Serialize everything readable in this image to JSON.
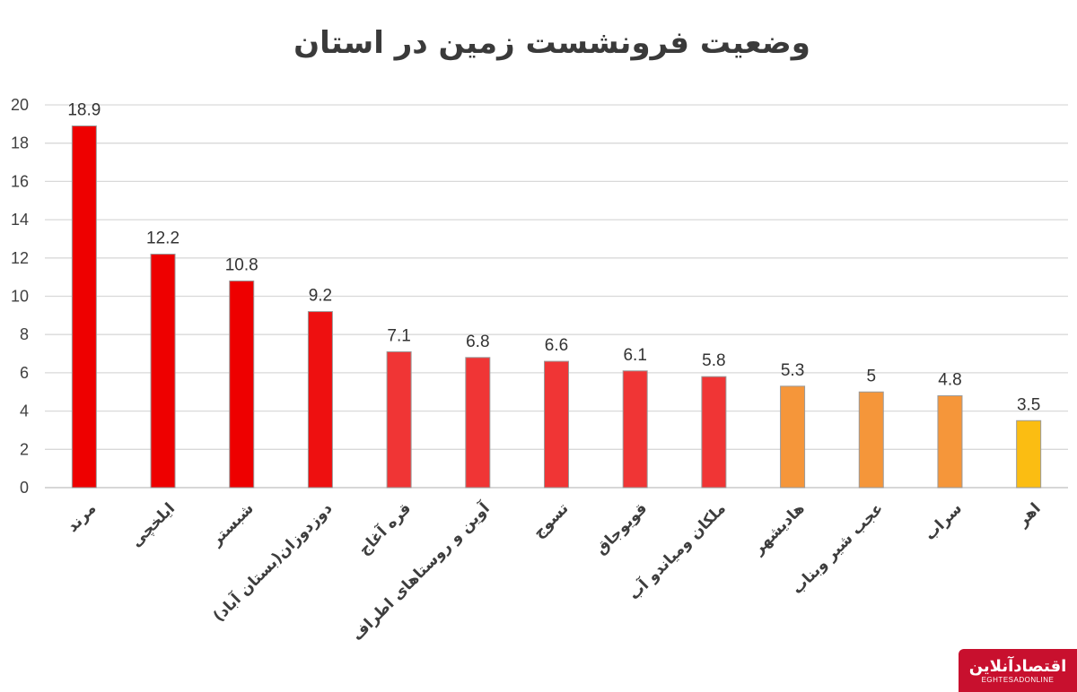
{
  "chart_data": {
    "type": "bar",
    "title": "وضعیت فرونشست زمین در استان",
    "categories": [
      "مرند",
      "ایلخچی",
      "شبستر",
      "دوزدوزان(بستان آباد)",
      "قره آغاج",
      "آوین و روستاهای اطراف",
      "تسوج",
      "قویوجاق",
      "ملکان ومیاندو آب",
      "هادیشهر",
      "عجب شیر وبناب",
      "سراب",
      "اهر"
    ],
    "values": [
      18.9,
      12.2,
      10.8,
      9.2,
      7.1,
      6.8,
      6.6,
      6.1,
      5.8,
      5.3,
      5,
      4.8,
      3.5
    ],
    "data_labels": [
      "18.9",
      "12.2",
      "10.8",
      "9.2",
      "7.1",
      "6.8",
      "6.6",
      "6.1",
      "5.8",
      "5.3",
      "5",
      "4.8",
      "3.5"
    ],
    "colors": [
      "#ee0000",
      "#ee0000",
      "#ee0000",
      "#ee1010",
      "#f03535",
      "#f03535",
      "#f03535",
      "#f03535",
      "#f03535",
      "#f5963a",
      "#f5963a",
      "#f5963a",
      "#fbbd12"
    ],
    "ylim": [
      0,
      20
    ],
    "yticks": [
      0,
      2,
      4,
      6,
      8,
      10,
      12,
      14,
      16,
      18,
      20
    ],
    "xlabel": "",
    "ylabel": "",
    "grid": true,
    "legend": "none"
  },
  "logo": {
    "name": "اقتصادآنلاین",
    "sub": "EGHTESADONLINE"
  }
}
